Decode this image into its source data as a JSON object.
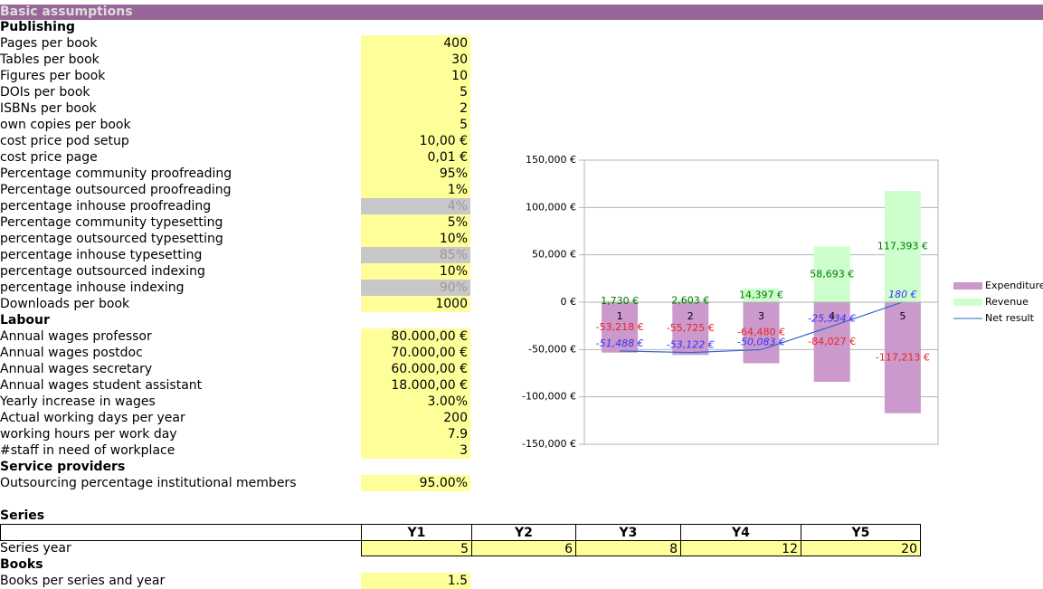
{
  "header": {
    "title": "Basic assumptions"
  },
  "sections": [
    {
      "title": "Publishing",
      "rows": [
        {
          "label": "Pages per book",
          "value": "400"
        },
        {
          "label": "Tables per book",
          "value": "30"
        },
        {
          "label": "Figures per book",
          "value": "10"
        },
        {
          "label": "DOIs per book",
          "value": "5"
        },
        {
          "label": "ISBNs per book",
          "value": "2"
        },
        {
          "label": "own copies per book",
          "value": "5"
        },
        {
          "label": "cost price pod setup",
          "value": "10,00 €"
        },
        {
          "label": "cost price page",
          "value": "0,01 €"
        },
        {
          "label": "Percentage community proofreading",
          "value": "95%"
        },
        {
          "label": "Percentage outsourced proofreading",
          "value": "1%"
        },
        {
          "label": "percentage inhouse proofreading",
          "value": "4%",
          "computed": true
        },
        {
          "label": "Percentage community typesetting",
          "value": "5%"
        },
        {
          "label": "percentage outsourced typesetting",
          "value": "10%"
        },
        {
          "label": "percentage inhouse typesetting",
          "value": "85%",
          "computed": true
        },
        {
          "label": "percentage outsourced indexing",
          "value": "10%"
        },
        {
          "label": "percentage inhouse indexing",
          "value": "90%",
          "computed": true
        },
        {
          "label": "Downloads per book",
          "value": "1000"
        }
      ]
    },
    {
      "title": "Labour",
      "rows": [
        {
          "label": "Annual wages professor",
          "value": "80.000,00 €"
        },
        {
          "label": "Annual wages postdoc",
          "value": "70.000,00 €"
        },
        {
          "label": "Annual wages secretary",
          "value": "60.000,00 €"
        },
        {
          "label": "Annual wages student assistant",
          "value": "18.000,00 €"
        },
        {
          "label": "Yearly increase in wages",
          "value": "3.00%"
        },
        {
          "label": "Actual working days per year",
          "value": "200"
        },
        {
          "label": "working hours per work day",
          "value": "7.9"
        },
        {
          "label": "#staff in need of workplace",
          "value": "3"
        }
      ]
    },
    {
      "title": "Service providers",
      "rows": [
        {
          "label": "Outsourcing percentage institutional members",
          "value": "95.00%"
        }
      ]
    }
  ],
  "series_table": {
    "title": "Series",
    "columns": [
      "Y1",
      "Y2",
      "Y3",
      "Y4",
      "Y5"
    ],
    "rows": [
      {
        "label": "Series year",
        "values": [
          "5",
          "6",
          "8",
          "12",
          "20"
        ]
      }
    ]
  },
  "books": {
    "title": "Books",
    "rows": [
      {
        "label": "Books per series and year",
        "value": "1.5"
      }
    ]
  },
  "chart_data": {
    "type": "bar",
    "categories": [
      "1",
      "2",
      "3",
      "4",
      "5"
    ],
    "ylim": [
      -150000,
      150000
    ],
    "yticks": [
      {
        "value": -150000,
        "label": "-150,000 €"
      },
      {
        "value": -100000,
        "label": "-100,000 €"
      },
      {
        "value": -50000,
        "label": "-50,000 €"
      },
      {
        "value": 0,
        "label": "0 €"
      },
      {
        "value": 50000,
        "label": "50,000 €"
      },
      {
        "value": 100000,
        "label": "100,000 €"
      },
      {
        "value": 150000,
        "label": "150,000 €"
      }
    ],
    "grid": true,
    "legend": "right",
    "series": [
      {
        "name": "Expenditure",
        "type": "bar",
        "color": "#cc99cc",
        "label_color": "#ee2222",
        "values": [
          -53218,
          -55725,
          -64480,
          -84027,
          -117213
        ],
        "value_labels": [
          "-53,218 €",
          "-55,725 €",
          "-64,480 €",
          "-84,027 €",
          "-117,213 €"
        ]
      },
      {
        "name": "Revenue",
        "type": "bar",
        "color": "#ccffcc",
        "label_color": "#007700",
        "values": [
          1730,
          2603,
          14397,
          58693,
          117393
        ],
        "value_labels": [
          "1,730 €",
          "2,603 €",
          "14,397 €",
          "58,693 €",
          "117,393 €"
        ]
      },
      {
        "name": "Net result",
        "type": "line",
        "color": "#3366cc",
        "label_color": "#3333ff",
        "values": [
          -51488,
          -53122,
          -50083,
          -25334,
          180
        ],
        "value_labels": [
          "-51,488 €",
          "-53,122 €",
          "-50,083 €",
          "-25,334 €",
          "180 €"
        ]
      }
    ]
  }
}
